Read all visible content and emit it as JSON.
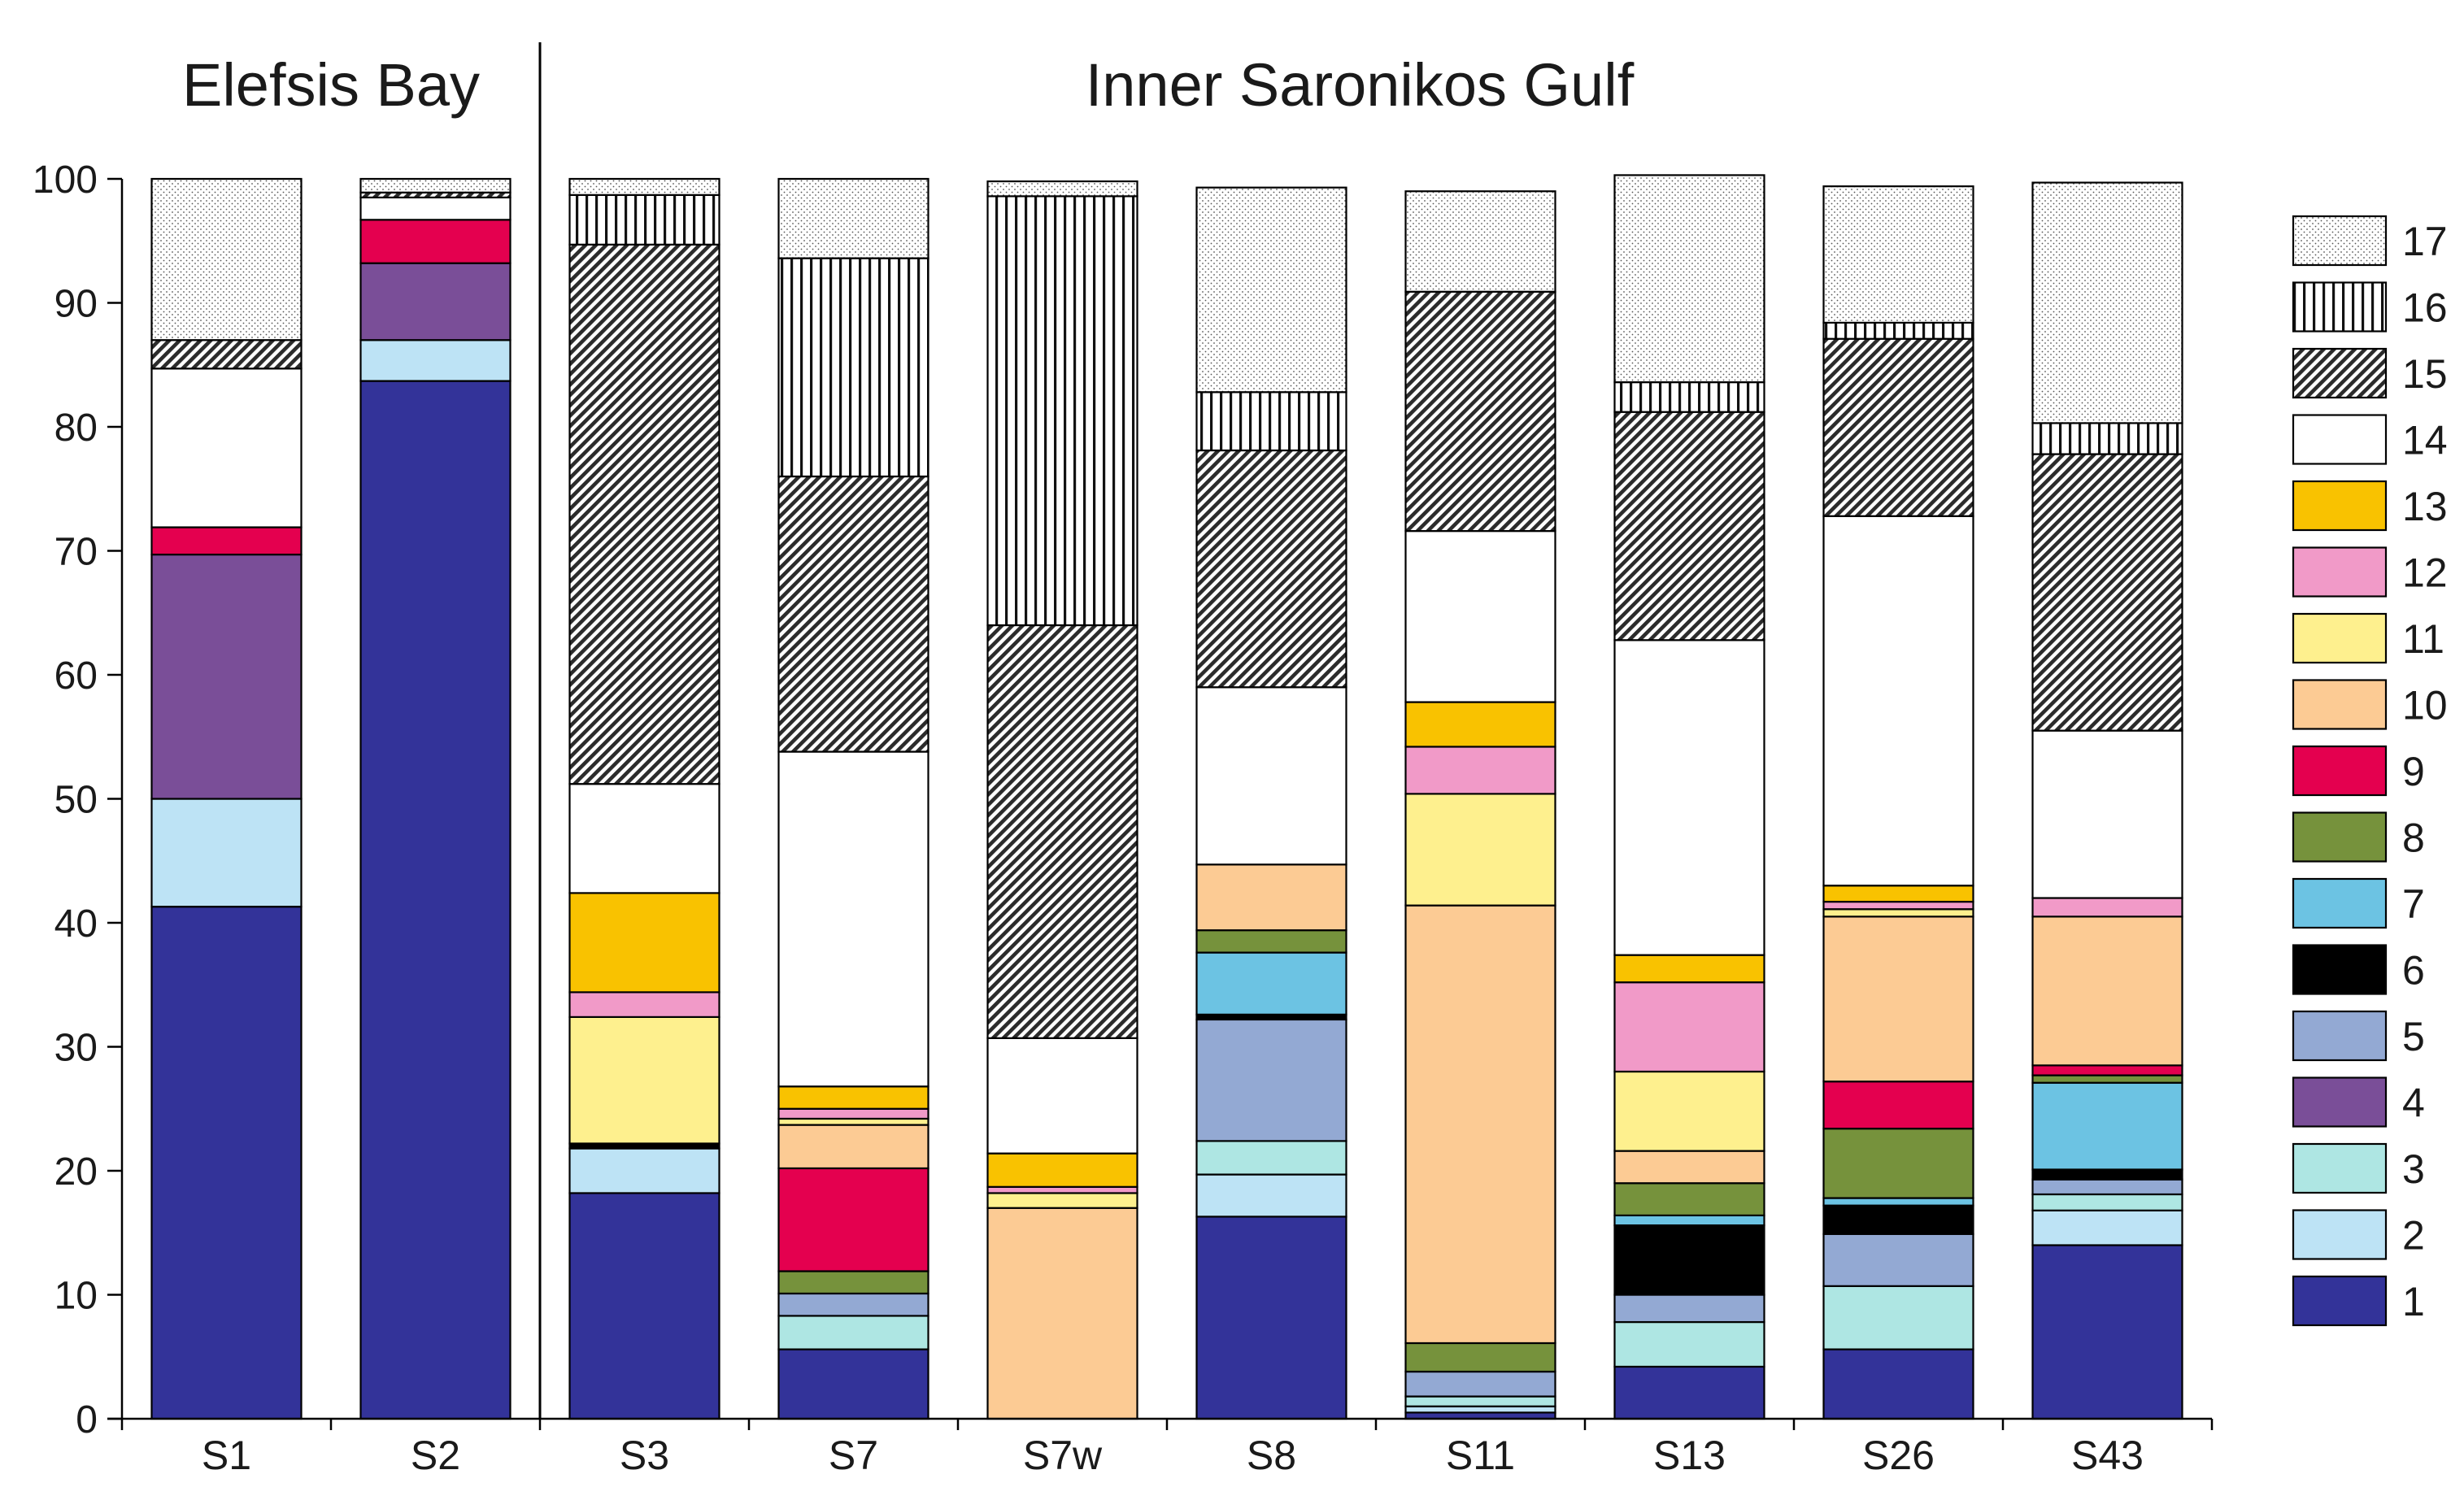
{
  "chart_data": {
    "type": "bar",
    "stacked": true,
    "groups": [
      {
        "label": "Elefsis Bay",
        "categories": [
          "S1",
          "S2"
        ]
      },
      {
        "label": "Inner Saronikos Gulf",
        "categories": [
          "S3",
          "S7",
          "S7w",
          "S8",
          "S11",
          "S13",
          "S26",
          "S43"
        ]
      }
    ],
    "categories": [
      "S1",
      "S2",
      "S3",
      "S7",
      "S7w",
      "S8",
      "S11",
      "S13",
      "S26",
      "S43"
    ],
    "yticks": [
      "0",
      "10",
      "20",
      "30",
      "40",
      "50",
      "60",
      "70",
      "80",
      "90",
      "100"
    ],
    "ylim": [
      0,
      100
    ],
    "legend_position": "right",
    "series": [
      {
        "name": "1",
        "color": "#333399",
        "pattern": "solid",
        "values": [
          41.3,
          83.7,
          18.2,
          5.6,
          0,
          16.3,
          0.5,
          4.2,
          5.6,
          14.0
        ]
      },
      {
        "name": "2",
        "color": "#bde3f5",
        "pattern": "solid",
        "values": [
          8.7,
          3.3,
          3.6,
          0,
          0,
          3.4,
          0.5,
          0,
          0,
          2.8
        ]
      },
      {
        "name": "3",
        "color": "#aee6e3",
        "pattern": "solid",
        "values": [
          0,
          0,
          0,
          2.7,
          0,
          2.7,
          0.8,
          3.6,
          5.1,
          1.3
        ]
      },
      {
        "name": "4",
        "color": "#7a4e98",
        "pattern": "solid",
        "values": [
          19.7,
          6.2,
          0,
          0,
          0,
          0,
          0,
          0,
          0,
          0
        ]
      },
      {
        "name": "5",
        "color": "#93a9d3",
        "pattern": "solid",
        "values": [
          0,
          0,
          0,
          1.8,
          0,
          9.8,
          2.0,
          2.2,
          4.2,
          1.2
        ]
      },
      {
        "name": "6",
        "color": "#000000",
        "pattern": "solid",
        "values": [
          0,
          0,
          0.4,
          0,
          0,
          0.4,
          0,
          5.6,
          2.3,
          0.8
        ]
      },
      {
        "name": "7",
        "color": "#6cc3e3",
        "pattern": "solid",
        "values": [
          0,
          0,
          0,
          0,
          0,
          5.0,
          0,
          0.8,
          0.6,
          7.0
        ]
      },
      {
        "name": "8",
        "color": "#76923c",
        "pattern": "solid",
        "values": [
          0,
          0,
          0,
          1.8,
          0,
          1.8,
          2.3,
          2.6,
          5.6,
          0.6
        ]
      },
      {
        "name": "9",
        "color": "#e4004f",
        "pattern": "solid",
        "values": [
          2.2,
          3.5,
          0,
          8.3,
          0,
          0,
          0,
          0,
          3.8,
          0.8
        ]
      },
      {
        "name": "10",
        "color": "#fccb94",
        "pattern": "solid",
        "values": [
          0,
          0,
          0,
          3.5,
          17.0,
          5.3,
          35.3,
          2.6,
          13.3,
          12.0
        ]
      },
      {
        "name": "11",
        "color": "#fef08e",
        "pattern": "solid",
        "values": [
          0,
          0,
          10.2,
          0.5,
          1.2,
          0,
          9.0,
          6.4,
          0.6,
          0
        ]
      },
      {
        "name": "12",
        "color": "#f19ac8",
        "pattern": "solid",
        "values": [
          0,
          0,
          2.0,
          0.8,
          0.5,
          0,
          3.8,
          7.2,
          0.6,
          1.5
        ]
      },
      {
        "name": "13",
        "color": "#f9c200",
        "pattern": "solid",
        "values": [
          0,
          0,
          8.0,
          1.8,
          2.7,
          0,
          3.6,
          2.2,
          1.3,
          0
        ]
      },
      {
        "name": "14",
        "color": "#ffffff",
        "pattern": "solid",
        "values": [
          12.8,
          1.8,
          8.8,
          27.0,
          9.3,
          14.3,
          13.8,
          25.4,
          29.8,
          13.5
        ]
      },
      {
        "name": "15",
        "color": "#ffffff",
        "pattern": "hatch",
        "values": [
          2.3,
          0.4,
          43.5,
          22.2,
          33.3,
          19.1,
          19.3,
          18.4,
          14.3,
          22.3
        ]
      },
      {
        "name": "16",
        "color": "#ffffff",
        "pattern": "vertical",
        "values": [
          0,
          0,
          4.0,
          17.6,
          34.6,
          4.7,
          0,
          2.4,
          1.3,
          2.5
        ]
      },
      {
        "name": "17",
        "color": "#ffffff",
        "pattern": "dots",
        "values": [
          13.0,
          1.1,
          1.3,
          6.4,
          1.2,
          16.5,
          8.1,
          16.7,
          11.0,
          19.4
        ]
      }
    ]
  }
}
